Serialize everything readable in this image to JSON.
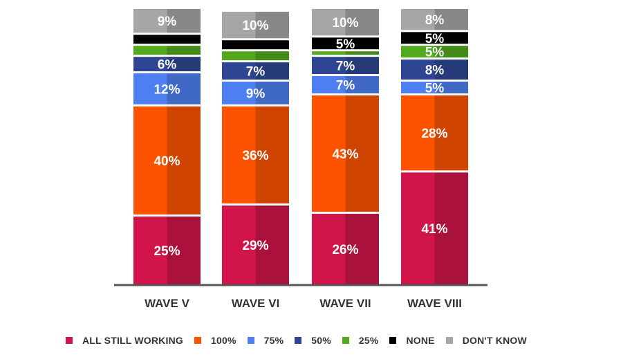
{
  "chart_data": {
    "type": "bar",
    "stacked": true,
    "categories": [
      "WAVE V",
      "WAVE VI",
      "WAVE VII",
      "WAVE VIII"
    ],
    "ylim": [
      0,
      100
    ],
    "grid": false,
    "legend_position": "bottom",
    "series": [
      {
        "name": "ALL STILL WORKING",
        "color": "#d1154a",
        "values": [
          25,
          29,
          26,
          41
        ],
        "labels": [
          "25%",
          "29%",
          "26%",
          "41%"
        ]
      },
      {
        "name": "100%",
        "color": "#fd5300",
        "values": [
          40,
          36,
          43,
          28
        ],
        "labels": [
          "40%",
          "36%",
          "43%",
          "28%"
        ]
      },
      {
        "name": "75%",
        "color": "#4e7ff0",
        "values": [
          12,
          9,
          7,
          5
        ],
        "labels": [
          "12%",
          "9%",
          "7%",
          "5%"
        ]
      },
      {
        "name": "50%",
        "color": "#2e4593",
        "values": [
          6,
          7,
          7,
          8
        ],
        "labels": [
          "6%",
          "7%",
          "7%",
          "8%"
        ]
      },
      {
        "name": "25%",
        "color": "#52a91d",
        "values": [
          4,
          4,
          2,
          5
        ],
        "labels": [
          "",
          "",
          "",
          "5%"
        ]
      },
      {
        "name": "NONE",
        "color": "#000000",
        "values": [
          4,
          4,
          5,
          5
        ],
        "labels": [
          "",
          "",
          "5%",
          "5%"
        ]
      },
      {
        "name": "DON'T KNOW",
        "color": "#a6a6a6",
        "values": [
          9,
          10,
          10,
          8
        ],
        "labels": [
          "9%",
          "10%",
          "10%",
          "8%"
        ]
      }
    ]
  }
}
